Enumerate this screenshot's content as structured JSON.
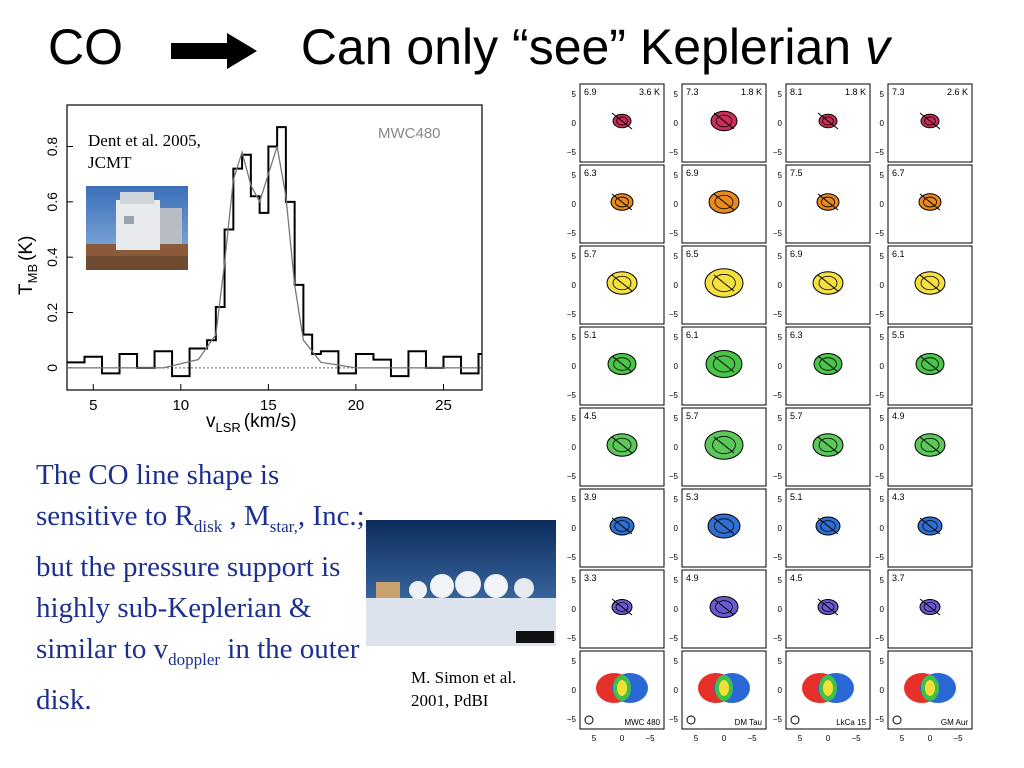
{
  "title": {
    "left": "CO",
    "right": "Can only “see” Keplerian",
    "var": "v"
  },
  "spectrum": {
    "source_label": "MWC480",
    "ylabel_main": "T",
    "ylabel_sub": "MB",
    "ylabel_unit": "(K)",
    "xlabel_main": "v",
    "xlabel_sub": "LSR",
    "xlabel_unit": "(km/s)",
    "xticks": [
      "5",
      "10",
      "15",
      "20",
      "25"
    ],
    "yticks": [
      "0",
      "0.2",
      "0.4",
      "0.6",
      "0.8"
    ]
  },
  "chart_data": {
    "type": "line",
    "xlim": [
      3.5,
      27.2
    ],
    "ylim": [
      -0.08,
      0.95
    ],
    "series": [
      {
        "x": [
          3.5,
          4.5,
          5.5,
          6.5,
          7.5,
          8.5,
          9.5,
          10.5,
          11.5,
          12.0,
          12.5,
          13.0,
          13.5,
          14.0,
          14.5,
          15.0,
          15.5,
          16.0,
          16.5,
          17.0,
          17.5,
          18.0,
          19.0,
          20.0,
          21.0,
          22.0,
          23.0,
          24.0,
          25.0,
          26.0,
          27.0
        ],
        "y": [
          0.02,
          0.04,
          -0.02,
          0.05,
          0.0,
          0.06,
          -0.03,
          0.07,
          0.1,
          0.22,
          0.5,
          0.72,
          0.77,
          0.62,
          0.56,
          0.8,
          0.87,
          0.6,
          0.3,
          0.12,
          0.05,
          0.06,
          -0.02,
          0.05,
          0.03,
          -0.03,
          0.06,
          0.0,
          0.04,
          -0.02,
          0.05
        ]
      },
      {
        "x": [
          3.5,
          9.0,
          11.0,
          12.0,
          12.5,
          13.0,
          13.5,
          14.0,
          14.5,
          15.0,
          15.5,
          16.0,
          16.5,
          17.0,
          18.0,
          20.0,
          27.0
        ],
        "y": [
          0.0,
          0.0,
          0.03,
          0.12,
          0.38,
          0.68,
          0.78,
          0.66,
          0.6,
          0.7,
          0.8,
          0.62,
          0.3,
          0.1,
          0.02,
          0.0,
          0.0
        ]
      }
    ]
  },
  "caption1": {
    "line1": "Dent et al. 2005,",
    "line2": "JCMT"
  },
  "body": {
    "t1": "The CO line shape is sensitive to R",
    "s1": "disk",
    "t2": " , M",
    "s2": "star,",
    "t3": ", Inc.; but the pressure support is highly sub-Keplerian & similar to v",
    "s3": "doppler",
    "t4": " in the outer disk."
  },
  "caption2": {
    "line1": "M. Simon et al.",
    "line2": "2001, PdBI"
  },
  "channel_maps": {
    "columns": [
      {
        "name": "MWC 480",
        "labels": [
          "6.9",
          "6.3",
          "5.7",
          "5.1",
          "4.5",
          "3.9",
          "3.3"
        ],
        "temp": "3.6 K"
      },
      {
        "name": "DM Tau",
        "labels": [
          "7.3",
          "6.9",
          "6.5",
          "6.1",
          "5.7",
          "5.3",
          "4.9"
        ],
        "temp": "1.8 K"
      },
      {
        "name": "LkCa 15",
        "labels": [
          "8.1",
          "7.5",
          "6.9",
          "6.3",
          "5.7",
          "5.1",
          "4.5"
        ],
        "temp": "1.8 K"
      },
      {
        "name": "GM Aur",
        "labels": [
          "7.3",
          "6.7",
          "6.1",
          "5.5",
          "4.9",
          "4.3",
          "3.7"
        ],
        "temp": "2.6 K"
      }
    ],
    "row_colors": [
      "#c8305a",
      "#e88a1c",
      "#f5e040",
      "#4cc44a",
      "#5cc85a",
      "#2f6fd0",
      "#6a5ad0"
    ],
    "axis_ticks": [
      "5",
      "0",
      "−5"
    ]
  }
}
